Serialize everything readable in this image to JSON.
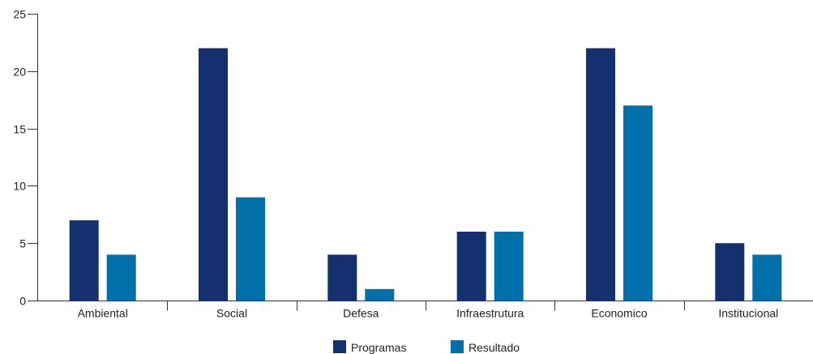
{
  "chart_data": {
    "type": "bar",
    "categories": [
      "Ambiental",
      "Social",
      "Defesa",
      "Infraestrutura",
      "Economico",
      "Institucional"
    ],
    "series": [
      {
        "name": "Programas",
        "values": [
          7,
          22,
          4,
          6,
          22,
          5
        ],
        "color": "#15306e"
      },
      {
        "name": "Resultado",
        "values": [
          4,
          9,
          1,
          6,
          17,
          4
        ],
        "color": "#0070ab"
      }
    ],
    "ylim": [
      0,
      25
    ],
    "yticks": [
      0,
      5,
      10,
      15,
      20,
      25
    ],
    "grid": false,
    "legend": "bottom-center"
  }
}
